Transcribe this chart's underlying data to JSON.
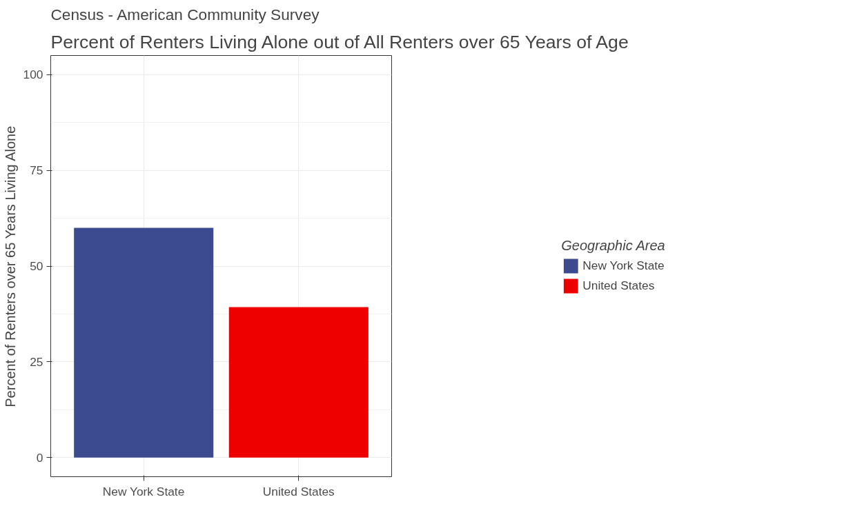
{
  "chart_data": {
    "type": "bar",
    "title": "Percent of Renters Living Alone out of All Renters over 65 Years of Age",
    "subtitle": "Census - American Community Survey",
    "ylabel": "Percent of Renters over 65 Years Living Alone",
    "legend_title": "Geographic Area",
    "categories": [
      "New York State",
      "United States"
    ],
    "series": [
      {
        "name": "New York State",
        "color": "#3c4a8f",
        "values": [
          60,
          null
        ]
      },
      {
        "name": "United States",
        "color": "#ee0000",
        "values": [
          null,
          39.3
        ]
      }
    ],
    "stacked": true,
    "ylim": [
      -5,
      105
    ],
    "yticks": [
      0,
      25,
      50,
      75,
      100
    ],
    "grid": true,
    "legend": "right"
  }
}
